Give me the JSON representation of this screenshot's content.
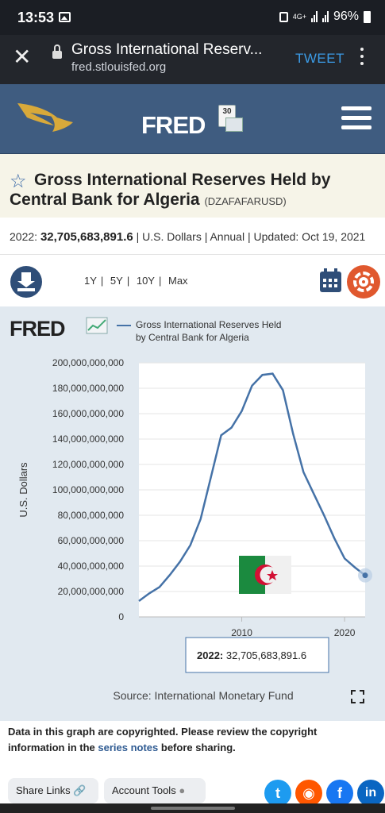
{
  "status_bar": {
    "time": "13:53",
    "network": "4G+",
    "battery": "96%"
  },
  "browser": {
    "title": "Gross International Reserv...",
    "url": "fred.stlouisfed.org",
    "tweet_label": "TWEET"
  },
  "site": {
    "logo": "FRED",
    "anniv": "30"
  },
  "series": {
    "title": "Gross International Reserves Held by Central Bank for Algeria",
    "code": "(DZAFAFARUSD)",
    "meta_prefix": "2022:",
    "meta_value": "32,705,683,891.6",
    "meta_rest": "| U.S. Dollars | Annual | Updated: Oct 19, 2021"
  },
  "ranges": [
    "1Y",
    "5Y",
    "10Y",
    "Max"
  ],
  "chart_data": {
    "type": "line",
    "legend": "Gross International Reserves Held by Central Bank for Algeria",
    "ylabel": "U.S. Dollars",
    "ylim": [
      0,
      200000000000
    ],
    "xlim": [
      2000,
      2022
    ],
    "yticks": [
      "0",
      "20,000,000,000",
      "40,000,000,000",
      "60,000,000,000",
      "80,000,000,000",
      "100,000,000,000",
      "120,000,000,000",
      "140,000,000,000",
      "160,000,000,000",
      "180,000,000,000",
      "200,000,000,000"
    ],
    "xticks": [
      "2010",
      "2020"
    ],
    "series": [
      {
        "x": [
          2000,
          2001,
          2002,
          2003,
          2004,
          2005,
          2006,
          2007,
          2008,
          2009,
          2010,
          2011,
          2012,
          2013,
          2014,
          2015,
          2016,
          2017,
          2018,
          2019,
          2020,
          2021,
          2022
        ],
        "y": [
          12500000000,
          18500000000,
          23500000000,
          33000000000,
          43500000000,
          56500000000,
          77000000000,
          110000000000,
          143000000000,
          149000000000,
          162000000000,
          182000000000,
          190500000000,
          191500000000,
          178500000000,
          144000000000,
          114000000000,
          97000000000,
          80000000000,
          62000000000,
          46000000000,
          39000000000,
          32705683891.6
        ]
      }
    ],
    "tooltip": {
      "label": "2022:",
      "value": "32,705,683,891.6"
    },
    "source": "Source: International Monetary Fund",
    "brush_label": "20"
  },
  "copyright": {
    "part1": "Data in this graph are copyrighted. Please review the copyright information in the ",
    "link": "series notes",
    "part2": " before sharing."
  },
  "footer": {
    "share_label": "Share Links",
    "account_label": "Account Tools"
  }
}
